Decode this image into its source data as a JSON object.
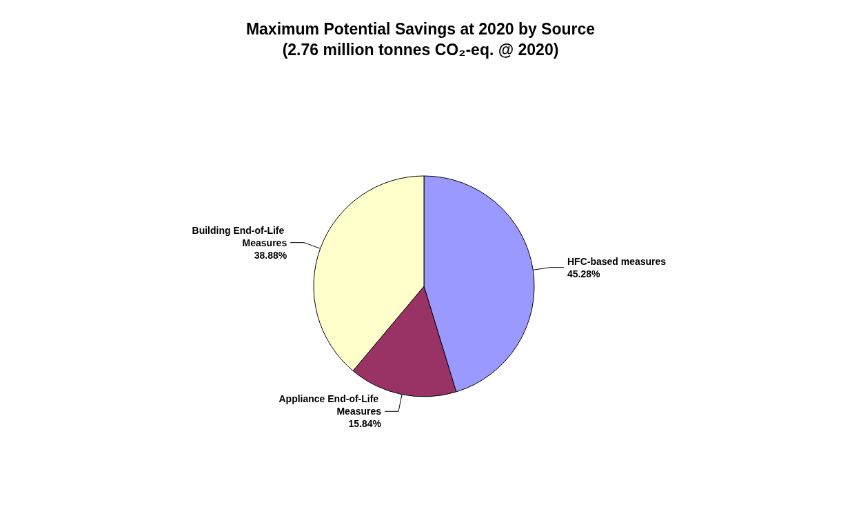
{
  "chart_data": {
    "type": "pie",
    "title": "Maximum Potential Savings at 2020 by Source\n(2.76 million tonnes CO₂-eq. @ 2020)",
    "categories": [
      "HFC-based measures",
      "Appliance End-of-Life Measures",
      "Building End-of-Life Measures"
    ],
    "values": [
      45.28,
      15.84,
      38.88
    ],
    "colors": [
      "#9999ff",
      "#993366",
      "#ffffcc"
    ],
    "value_labels": [
      "45.28%",
      "15.84%",
      "38.88%"
    ],
    "legend": false
  }
}
